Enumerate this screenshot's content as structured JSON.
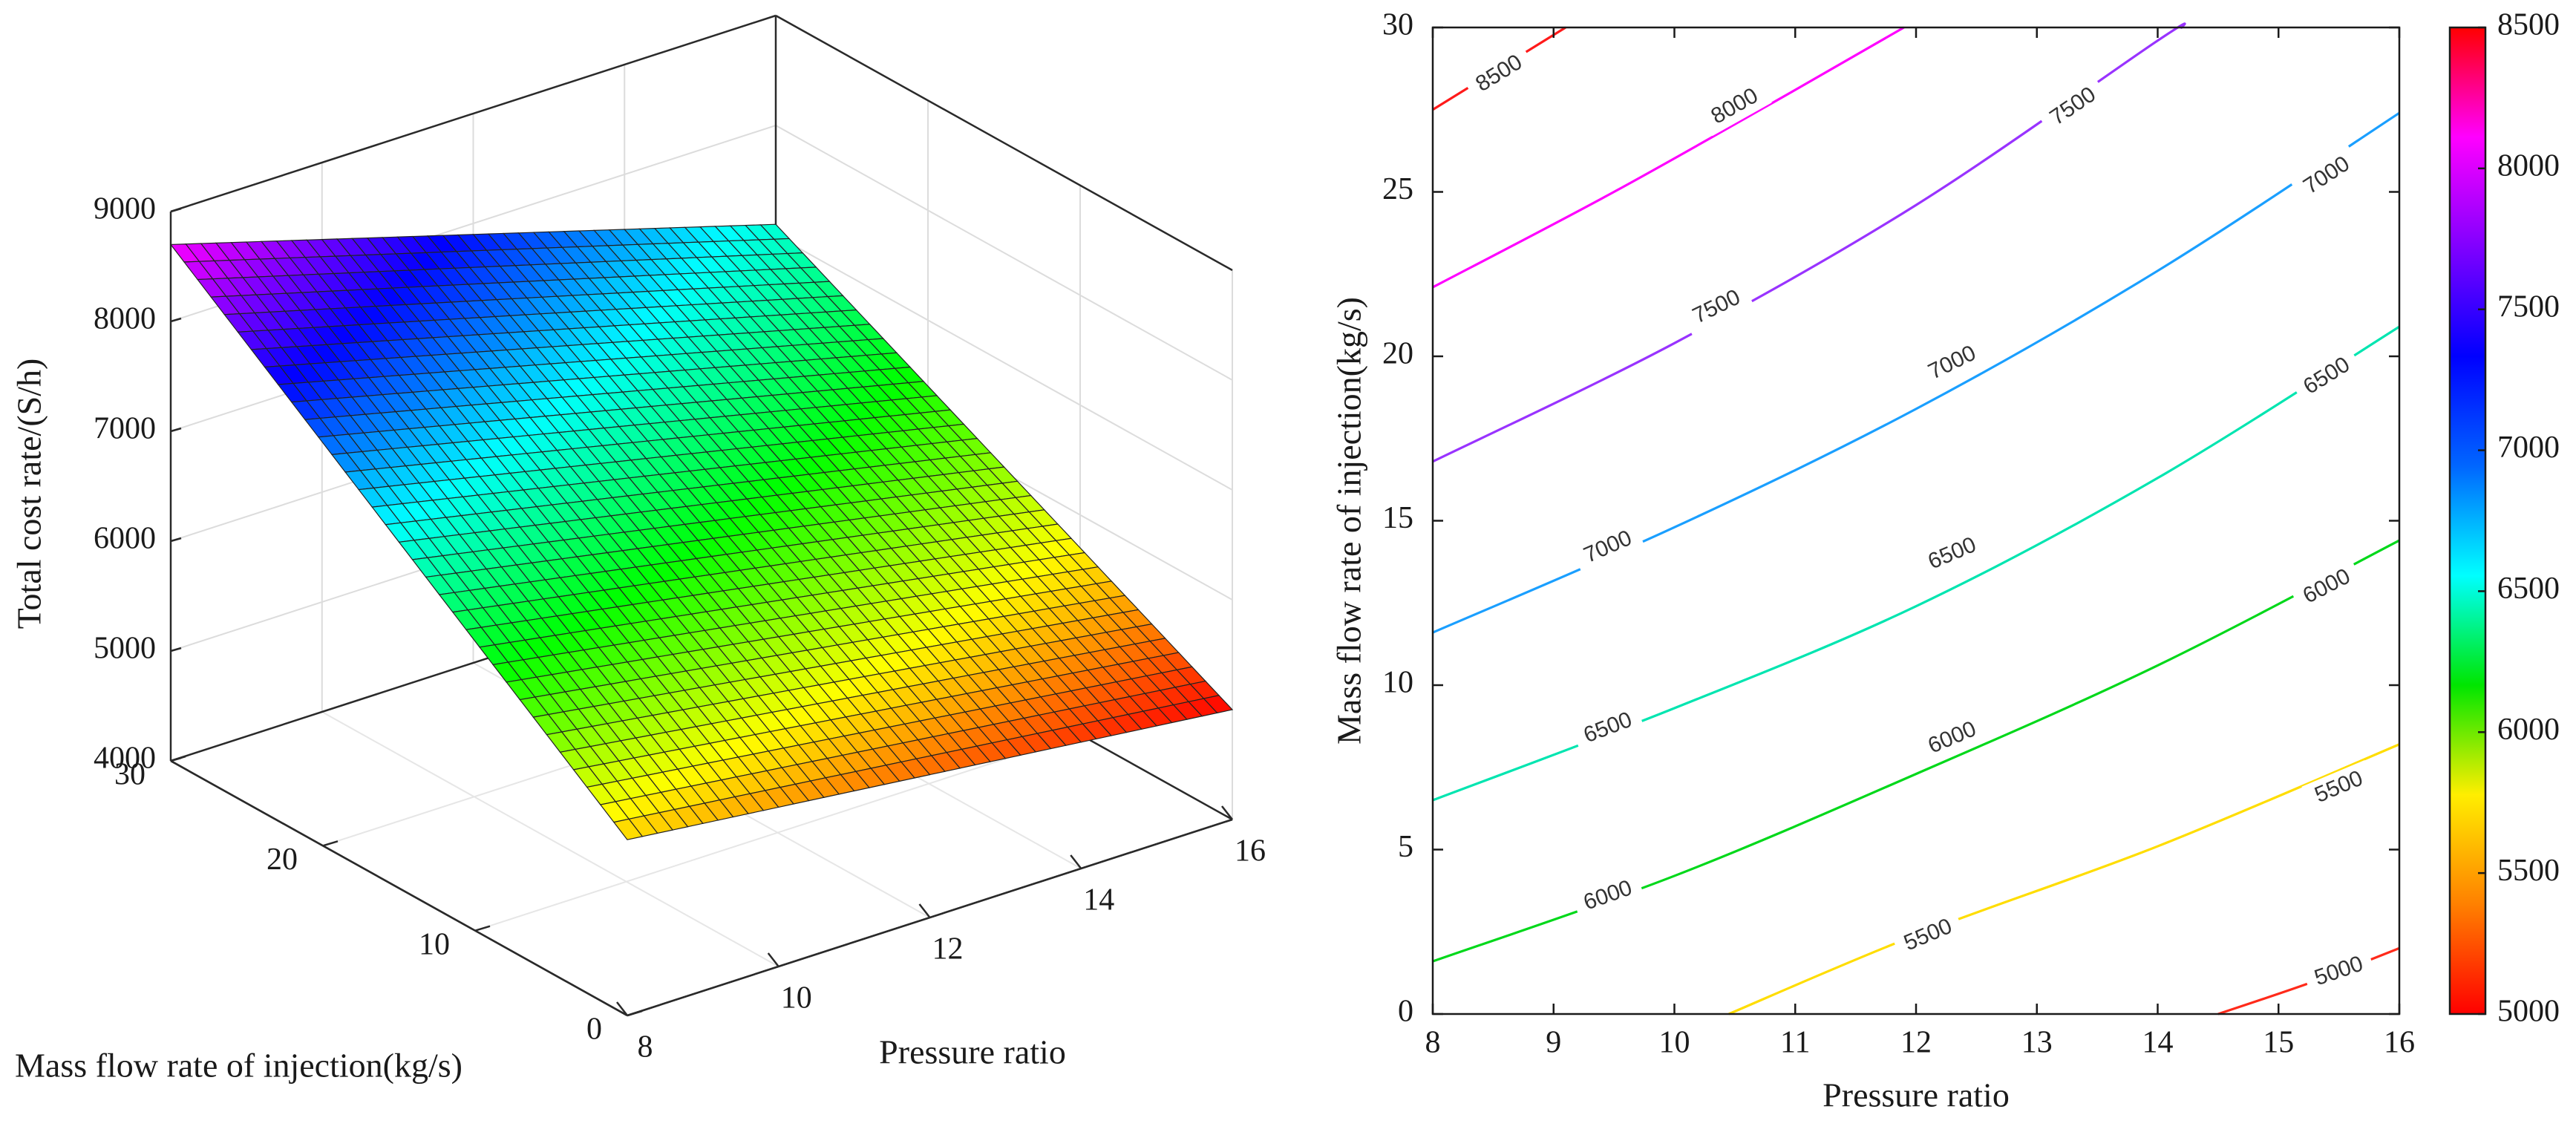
{
  "chart_data": [
    {
      "type": "surface",
      "title": "",
      "zlabel": "Total cost rate/(S/h)",
      "xlabel": "Pressure ratio",
      "ylabel": "Mass flow rate of injection(kg/s)",
      "xlim": [
        8,
        16
      ],
      "ylim": [
        0,
        30
      ],
      "zlim": [
        4000,
        9000
      ],
      "z_ticks": [
        "4000",
        "5000",
        "6000",
        "7000",
        "8000",
        "9000"
      ],
      "x_ticks": [
        "8",
        "10",
        "12",
        "14",
        "16"
      ],
      "y_ticks": [
        "0",
        "10",
        "20",
        "30"
      ],
      "corners": [
        {
          "x": 8,
          "y": 30,
          "z": 8700
        },
        {
          "x": 16,
          "y": 30,
          "z": 7100
        },
        {
          "x": 16,
          "y": 0,
          "z": 5000
        },
        {
          "x": 8,
          "y": 0,
          "z": 5600
        }
      ],
      "grid": true,
      "colormap": "hsv"
    },
    {
      "type": "contour",
      "title": "",
      "xlabel": "Pressure ratio",
      "ylabel": "Mass flow rate of injection(kg/s)",
      "xlim": [
        8,
        16
      ],
      "ylim": [
        0,
        30
      ],
      "x_ticks": [
        "8",
        "9",
        "10",
        "11",
        "12",
        "13",
        "14",
        "15",
        "16"
      ],
      "y_ticks": [
        "0",
        "5",
        "10",
        "15",
        "20",
        "25",
        "30"
      ],
      "levels": [
        {
          "value": 8500,
          "color": "#ff1a1a",
          "points": [
            [
              8,
              27.5
            ],
            [
              9.1,
              30
            ]
          ]
        },
        {
          "value": 8000,
          "color": "#ff00ff",
          "points": [
            [
              8,
              22.1
            ],
            [
              9.5,
              25.0
            ],
            [
              11.0,
              28.1
            ],
            [
              11.9,
              30
            ]
          ]
        },
        {
          "value": 7500,
          "color": "#9933ff",
          "points": [
            [
              8,
              16.8
            ],
            [
              10,
              20.4
            ],
            [
              12,
              24.6
            ],
            [
              14,
              29.6
            ],
            [
              14.2,
              30
            ]
          ]
        },
        {
          "value": 7000,
          "color": "#1a9fff",
          "points": [
            [
              8,
              11.6
            ],
            [
              10,
              14.8
            ],
            [
              12,
              18.4
            ],
            [
              14,
              22.6
            ],
            [
              16,
              27.4
            ]
          ]
        },
        {
          "value": 6500,
          "color": "#00e5b0",
          "points": [
            [
              8,
              6.5
            ],
            [
              10,
              9.3
            ],
            [
              12,
              12.4
            ],
            [
              14,
              16.3
            ],
            [
              16,
              20.9
            ]
          ]
        },
        {
          "value": 6000,
          "color": "#00d81a",
          "points": [
            [
              8,
              1.6
            ],
            [
              10,
              4.2
            ],
            [
              12,
              7.3
            ],
            [
              14,
              10.6
            ],
            [
              16,
              14.4
            ]
          ]
        },
        {
          "value": 5500,
          "color": "#ffdd00",
          "points": [
            [
              10.45,
              0
            ],
            [
              12,
              2.4
            ],
            [
              14,
              5.1
            ],
            [
              16,
              8.2
            ]
          ]
        },
        {
          "value": 5000,
          "color": "#ff2a1a",
          "points": [
            [
              14.5,
              0
            ],
            [
              15.3,
              1.0
            ],
            [
              16,
              2.0
            ]
          ]
        }
      ],
      "contour_labels": [
        {
          "text": "8500",
          "x": 8.55,
          "y": 28.6
        },
        {
          "text": "8000",
          "x": 10.5,
          "y": 27.6
        },
        {
          "text": "7500",
          "x": 13.3,
          "y": 27.6
        },
        {
          "text": "7500",
          "x": 10.35,
          "y": 21.5
        },
        {
          "text": "7000",
          "x": 15.4,
          "y": 25.5
        },
        {
          "text": "7000",
          "x": 12.3,
          "y": 19.8
        },
        {
          "text": "7000",
          "x": 9.45,
          "y": 14.2
        },
        {
          "text": "6500",
          "x": 15.4,
          "y": 19.4
        },
        {
          "text": "6500",
          "x": 12.3,
          "y": 14.0
        },
        {
          "text": "6500",
          "x": 9.45,
          "y": 8.7
        },
        {
          "text": "6000",
          "x": 15.4,
          "y": 13.0
        },
        {
          "text": "6000",
          "x": 12.3,
          "y": 8.4
        },
        {
          "text": "6000",
          "x": 9.45,
          "y": 3.6
        },
        {
          "text": "5500",
          "x": 15.5,
          "y": 6.9
        },
        {
          "text": "5500",
          "x": 12.1,
          "y": 2.4
        },
        {
          "text": "5000",
          "x": 15.5,
          "y": 1.3
        }
      ]
    },
    {
      "type": "colorbar",
      "range": [
        5000,
        8500
      ],
      "ticks": [
        "5000",
        "5500",
        "6000",
        "6500",
        "7000",
        "7500",
        "8000",
        "8500"
      ],
      "stops": [
        "#ff0000",
        "#ff8000",
        "#ffee00",
        "#00e600",
        "#00ffff",
        "#0066ff",
        "#0000ff",
        "#8000ff",
        "#ff00ff",
        "#ff0000"
      ]
    }
  ]
}
